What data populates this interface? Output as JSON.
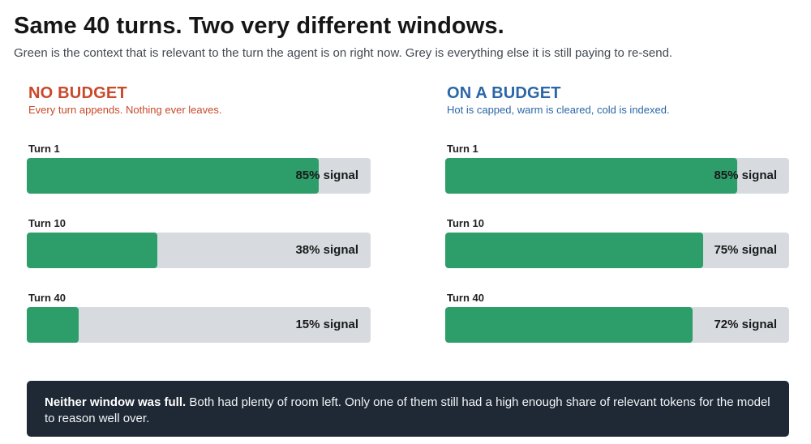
{
  "header": {
    "title": "Same 40 turns. Two very different windows.",
    "subtitle": "Green is the context that is relevant to the turn the agent is on right now. Grey is everything else it is still paying to re-send."
  },
  "colors": {
    "signal_fill": "#2d9e6a",
    "track": "#d7dbe0",
    "no_budget_accent": "#c9492a",
    "budget_accent": "#2b66a8",
    "note_bg": "#1f2935"
  },
  "chart_data": [
    {
      "type": "bar",
      "orientation": "horizontal",
      "title": "NO BUDGET",
      "subtitle": "Every turn appends. Nothing ever leaves.",
      "categories": [
        "Turn 1",
        "Turn 10",
        "Turn 40"
      ],
      "values": [
        85,
        38,
        15
      ],
      "value_labels": [
        "85% signal",
        "38% signal",
        "15% signal"
      ],
      "xlim": [
        0,
        100
      ],
      "unit": "% signal"
    },
    {
      "type": "bar",
      "orientation": "horizontal",
      "title": "ON A BUDGET",
      "subtitle": "Hot is capped, warm is cleared, cold is indexed.",
      "categories": [
        "Turn 1",
        "Turn 10",
        "Turn 40"
      ],
      "values": [
        85,
        75,
        72
      ],
      "value_labels": [
        "85% signal",
        "75% signal",
        "72% signal"
      ],
      "xlim": [
        0,
        100
      ],
      "unit": "% signal"
    }
  ],
  "note": {
    "bold": "Neither window was full.",
    "text": " Both had plenty of room left. Only one of them still had a high enough share of relevant tokens for the model to reason well over."
  }
}
